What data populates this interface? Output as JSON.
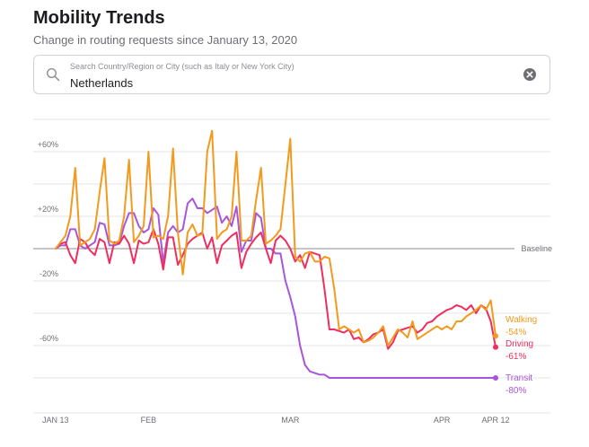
{
  "header": {
    "title": "Mobility Trends",
    "subtitle": "Change in routing requests since January 13, 2020"
  },
  "search": {
    "placeholder": "Search Country/Region or City (such as Italy or New York City)",
    "value": "Netherlands"
  },
  "colors": {
    "walking": "#f39a1d",
    "driving": "#ef2d5e",
    "transit": "#a855dd",
    "grid": "#e5e5ea",
    "baseline": "#8e8e93",
    "axis_text": "#6e6e73"
  },
  "chart_data": {
    "type": "line",
    "title": "Mobility Trends",
    "x_start": "2020-01-13",
    "days": 91,
    "ylim": [
      -100,
      80
    ],
    "y_ticks": [
      {
        "value": 60,
        "label": "+60%"
      },
      {
        "value": 40,
        "label": ""
      },
      {
        "value": 20,
        "label": "+20%"
      },
      {
        "value": -20,
        "label": "-20%"
      },
      {
        "value": -40,
        "label": ""
      },
      {
        "value": -60,
        "label": "-60%"
      },
      {
        "value": -80,
        "label": ""
      }
    ],
    "x_ticks": [
      {
        "day": 0,
        "label": "JAN 13"
      },
      {
        "day": 19,
        "label": "FEB"
      },
      {
        "day": 48,
        "label": "MAR"
      },
      {
        "day": 79,
        "label": "APR"
      },
      {
        "day": 90,
        "label": "APR 12"
      }
    ],
    "baseline_label": "Baseline",
    "series": [
      {
        "name": "Walking",
        "label": "Walking",
        "value_label": "-54%",
        "key": "walking",
        "values": [
          0,
          4,
          8,
          20,
          50,
          2,
          4,
          6,
          12,
          35,
          56,
          5,
          3,
          5,
          20,
          55,
          4,
          8,
          14,
          60,
          7,
          8,
          6,
          20,
          62,
          10,
          -16,
          10,
          15,
          8,
          9,
          60,
          73,
          6,
          10,
          12,
          20,
          60,
          5,
          5,
          8,
          30,
          50,
          3,
          5,
          8,
          12,
          40,
          68,
          -5,
          -8,
          -3,
          -2,
          -8,
          -8,
          -5,
          -6,
          -25,
          -50,
          -48,
          -50,
          -52,
          -50,
          -58,
          -57,
          -55,
          -52,
          -48,
          -60,
          -55,
          -50,
          -52,
          -55,
          -45,
          -56,
          -54,
          -52,
          -50,
          -48,
          -50,
          -48,
          -50,
          -45,
          -45,
          -42,
          -40,
          -38,
          -35,
          -38,
          -32,
          -54
        ]
      },
      {
        "name": "Driving",
        "label": "Driving",
        "value_label": "-61%",
        "key": "driving",
        "values": [
          0,
          3,
          4,
          -4,
          -9,
          6,
          4,
          -1,
          -4,
          6,
          4,
          -9,
          4,
          3,
          8,
          3,
          -9,
          5,
          3,
          4,
          12,
          3,
          -13,
          7,
          7,
          -10,
          -4,
          3,
          6,
          8,
          10,
          0,
          7,
          -9,
          2,
          5,
          8,
          10,
          -12,
          -2,
          3,
          7,
          10,
          0,
          -9,
          5,
          8,
          5,
          0,
          -8,
          -4,
          -12,
          -2,
          -3,
          -4,
          -25,
          -50,
          -50,
          -51,
          -52,
          -50,
          -56,
          -55,
          -58,
          -56,
          -53,
          -52,
          -50,
          -62,
          -58,
          -51,
          -50,
          -49,
          -48,
          -52,
          -50,
          -46,
          -45,
          -42,
          -40,
          -38,
          -37,
          -35,
          -36,
          -38,
          -35,
          -40,
          -35,
          -37,
          -45,
          -61
        ]
      },
      {
        "name": "Transit",
        "label": "Transit",
        "value_label": "-80%",
        "key": "transit",
        "values": [
          0,
          2,
          2,
          12,
          12,
          2,
          0,
          2,
          4,
          16,
          15,
          2,
          2,
          3,
          14,
          22,
          22,
          14,
          10,
          12,
          25,
          21,
          -9,
          10,
          14,
          10,
          12,
          28,
          31,
          25,
          25,
          22,
          24,
          26,
          16,
          20,
          14,
          26,
          -2,
          5,
          5,
          22,
          19,
          0,
          0,
          -3,
          -3,
          -20,
          -30,
          -42,
          -60,
          -72,
          -76,
          -77,
          -78,
          -78,
          -80,
          -80,
          -80,
          -80,
          -80,
          -80,
          -80,
          -80,
          -80,
          -80,
          -80,
          -80,
          -80,
          -80,
          -80,
          -80,
          -80,
          -80,
          -80,
          -80,
          -80,
          -80,
          -80,
          -80,
          -80,
          -80,
          -80,
          -80,
          -80,
          -80,
          -80,
          -80,
          -80,
          -80,
          -80
        ]
      }
    ]
  }
}
